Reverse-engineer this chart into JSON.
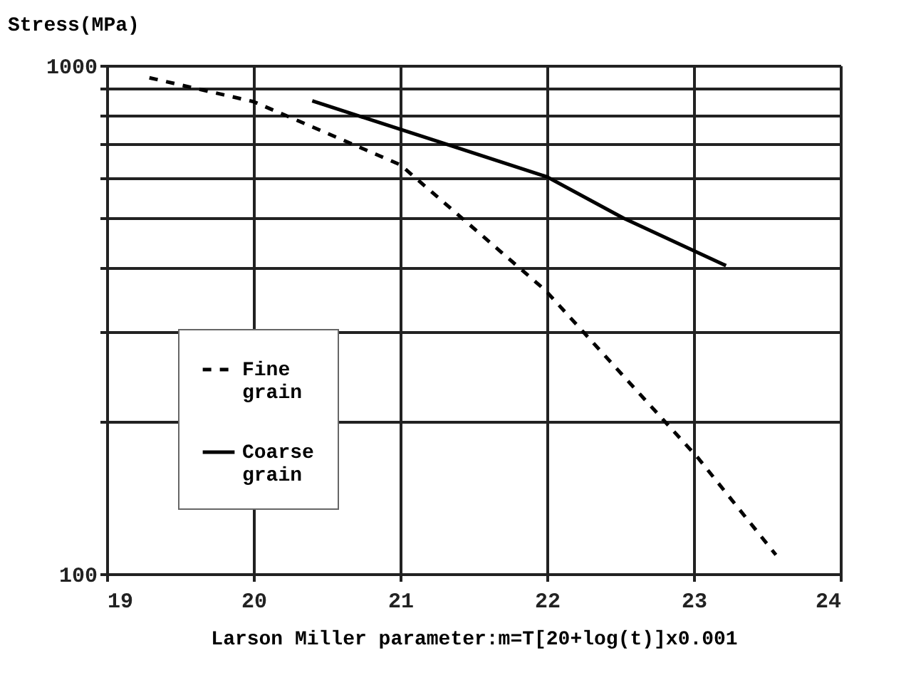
{
  "chart_data": {
    "type": "line",
    "xlabel": "Larson Miller parameter:m=T[20+log(t)]x0.001",
    "ylabel": "Stress(MPa)",
    "series": [
      {
        "name": "Fine grain",
        "color": "#000000",
        "line_style": "dashed",
        "x": [
          19.29,
          20.0,
          21.0,
          21.99,
          23.03,
          23.56
        ],
        "values": [
          946,
          849,
          638,
          361,
          169,
          109
        ]
      },
      {
        "name": "Coarse grain",
        "color": "#000000",
        "line_style": "solid",
        "x": [
          20.4,
          21.29,
          22.0,
          22.52,
          23.22
        ],
        "values": [
          852,
          704,
          604,
          501,
          404
        ]
      }
    ],
    "xlim": [
      19,
      24
    ],
    "xticks": [
      19,
      20,
      21,
      22,
      23,
      24
    ],
    "ylim": [
      100,
      1000
    ],
    "yticks": [
      100,
      {
        "value": 200,
        "label": null
      },
      {
        "value": 300,
        "label": null
      },
      {
        "value": 400,
        "label": null
      },
      {
        "value": 500,
        "label": null
      },
      {
        "value": 600,
        "label": null
      },
      {
        "value": 700,
        "label": null
      },
      {
        "value": 800,
        "label": null
      },
      {
        "value": 900,
        "label": null
      },
      1000
    ],
    "log": "y",
    "grid": true,
    "legend": "bottom left",
    "marker": "none"
  }
}
